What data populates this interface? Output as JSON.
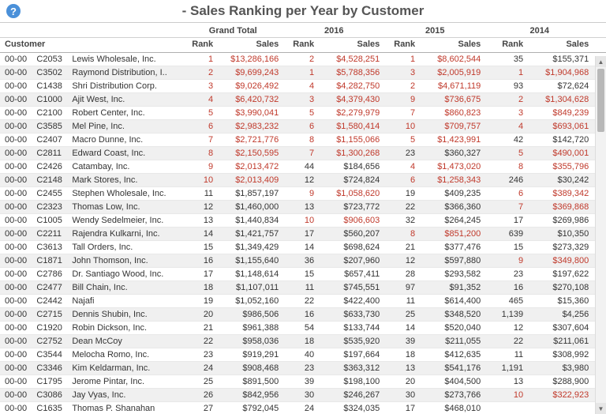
{
  "header": {
    "title": "- Sales Ranking per Year by Customer"
  },
  "columns": {
    "customer": "Customer",
    "groups": [
      {
        "label": "Grand Total",
        "rank": "Rank",
        "sales": "Sales"
      },
      {
        "label": "2016",
        "rank": "Rank",
        "sales": "Sales"
      },
      {
        "label": "2015",
        "rank": "Rank",
        "sales": "Sales"
      },
      {
        "label": "2014",
        "rank": "Rank",
        "sales": "Sales"
      }
    ]
  },
  "rows": [
    {
      "p": "00-00",
      "code": "C2053",
      "name": "Lewis Wholesale, Inc.",
      "gt_r": "1",
      "gt_rr": true,
      "gt_s": "$13,286,166",
      "gt_sr": true,
      "y16_r": "2",
      "y16_rr": true,
      "y16_s": "$4,528,251",
      "y16_sr": true,
      "y15_r": "1",
      "y15_rr": true,
      "y15_s": "$8,602,544",
      "y15_sr": true,
      "y14_r": "35",
      "y14_rr": false,
      "y14_s": "$155,371",
      "y14_sr": false
    },
    {
      "p": "00-00",
      "code": "C3502",
      "name": "Raymond Distribution, I..",
      "gt_r": "2",
      "gt_rr": true,
      "gt_s": "$9,699,243",
      "gt_sr": true,
      "y16_r": "1",
      "y16_rr": true,
      "y16_s": "$5,788,356",
      "y16_sr": true,
      "y15_r": "3",
      "y15_rr": true,
      "y15_s": "$2,005,919",
      "y15_sr": true,
      "y14_r": "1",
      "y14_rr": true,
      "y14_s": "$1,904,968",
      "y14_sr": true
    },
    {
      "p": "00-00",
      "code": "C1438",
      "name": "Shri Distribution Corp.",
      "gt_r": "3",
      "gt_rr": true,
      "gt_s": "$9,026,492",
      "gt_sr": true,
      "y16_r": "4",
      "y16_rr": true,
      "y16_s": "$4,282,750",
      "y16_sr": true,
      "y15_r": "2",
      "y15_rr": true,
      "y15_s": "$4,671,119",
      "y15_sr": true,
      "y14_r": "93",
      "y14_rr": false,
      "y14_s": "$72,624",
      "y14_sr": false
    },
    {
      "p": "00-00",
      "code": "C1000",
      "name": "Ajit West, Inc.",
      "gt_r": "4",
      "gt_rr": true,
      "gt_s": "$6,420,732",
      "gt_sr": true,
      "y16_r": "3",
      "y16_rr": true,
      "y16_s": "$4,379,430",
      "y16_sr": true,
      "y15_r": "9",
      "y15_rr": true,
      "y15_s": "$736,675",
      "y15_sr": true,
      "y14_r": "2",
      "y14_rr": true,
      "y14_s": "$1,304,628",
      "y14_sr": true
    },
    {
      "p": "00-00",
      "code": "C2100",
      "name": "Robert Center, Inc.",
      "gt_r": "5",
      "gt_rr": true,
      "gt_s": "$3,990,041",
      "gt_sr": true,
      "y16_r": "5",
      "y16_rr": true,
      "y16_s": "$2,279,979",
      "y16_sr": true,
      "y15_r": "7",
      "y15_rr": true,
      "y15_s": "$860,823",
      "y15_sr": true,
      "y14_r": "3",
      "y14_rr": true,
      "y14_s": "$849,239",
      "y14_sr": true
    },
    {
      "p": "00-00",
      "code": "C3585",
      "name": "Mel Pine, Inc.",
      "gt_r": "6",
      "gt_rr": true,
      "gt_s": "$2,983,232",
      "gt_sr": true,
      "y16_r": "6",
      "y16_rr": true,
      "y16_s": "$1,580,414",
      "y16_sr": true,
      "y15_r": "10",
      "y15_rr": true,
      "y15_s": "$709,757",
      "y15_sr": true,
      "y14_r": "4",
      "y14_rr": true,
      "y14_s": "$693,061",
      "y14_sr": true
    },
    {
      "p": "00-00",
      "code": "C2407",
      "name": "Macro Dunne, Inc.",
      "gt_r": "7",
      "gt_rr": true,
      "gt_s": "$2,721,776",
      "gt_sr": true,
      "y16_r": "8",
      "y16_rr": true,
      "y16_s": "$1,155,066",
      "y16_sr": true,
      "y15_r": "5",
      "y15_rr": true,
      "y15_s": "$1,423,991",
      "y15_sr": true,
      "y14_r": "42",
      "y14_rr": false,
      "y14_s": "$142,720",
      "y14_sr": false
    },
    {
      "p": "00-00",
      "code": "C2811",
      "name": "Edward Coast, Inc.",
      "gt_r": "8",
      "gt_rr": true,
      "gt_s": "$2,150,595",
      "gt_sr": true,
      "y16_r": "7",
      "y16_rr": true,
      "y16_s": "$1,300,268",
      "y16_sr": true,
      "y15_r": "23",
      "y15_rr": false,
      "y15_s": "$360,327",
      "y15_sr": false,
      "y14_r": "5",
      "y14_rr": true,
      "y14_s": "$490,001",
      "y14_sr": true
    },
    {
      "p": "00-00",
      "code": "C2426",
      "name": "Catambay, Inc.",
      "gt_r": "9",
      "gt_rr": true,
      "gt_s": "$2,013,472",
      "gt_sr": true,
      "y16_r": "44",
      "y16_rr": false,
      "y16_s": "$184,656",
      "y16_sr": false,
      "y15_r": "4",
      "y15_rr": true,
      "y15_s": "$1,473,020",
      "y15_sr": true,
      "y14_r": "8",
      "y14_rr": true,
      "y14_s": "$355,796",
      "y14_sr": true
    },
    {
      "p": "00-00",
      "code": "C2148",
      "name": "Mark Stores, Inc.",
      "gt_r": "10",
      "gt_rr": true,
      "gt_s": "$2,013,409",
      "gt_sr": true,
      "y16_r": "12",
      "y16_rr": false,
      "y16_s": "$724,824",
      "y16_sr": false,
      "y15_r": "6",
      "y15_rr": true,
      "y15_s": "$1,258,343",
      "y15_sr": true,
      "y14_r": "246",
      "y14_rr": false,
      "y14_s": "$30,242",
      "y14_sr": false
    },
    {
      "p": "00-00",
      "code": "C2455",
      "name": "Stephen Wholesale, Inc.",
      "gt_r": "11",
      "gt_rr": false,
      "gt_s": "$1,857,197",
      "gt_sr": false,
      "y16_r": "9",
      "y16_rr": true,
      "y16_s": "$1,058,620",
      "y16_sr": true,
      "y15_r": "19",
      "y15_rr": false,
      "y15_s": "$409,235",
      "y15_sr": false,
      "y14_r": "6",
      "y14_rr": true,
      "y14_s": "$389,342",
      "y14_sr": true
    },
    {
      "p": "00-00",
      "code": "C2323",
      "name": "Thomas Low, Inc.",
      "gt_r": "12",
      "gt_rr": false,
      "gt_s": "$1,460,000",
      "gt_sr": false,
      "y16_r": "13",
      "y16_rr": false,
      "y16_s": "$723,772",
      "y16_sr": false,
      "y15_r": "22",
      "y15_rr": false,
      "y15_s": "$366,360",
      "y15_sr": false,
      "y14_r": "7",
      "y14_rr": true,
      "y14_s": "$369,868",
      "y14_sr": true
    },
    {
      "p": "00-00",
      "code": "C1005",
      "name": "Wendy Sedelmeier, Inc.",
      "gt_r": "13",
      "gt_rr": false,
      "gt_s": "$1,440,834",
      "gt_sr": false,
      "y16_r": "10",
      "y16_rr": true,
      "y16_s": "$906,603",
      "y16_sr": true,
      "y15_r": "32",
      "y15_rr": false,
      "y15_s": "$264,245",
      "y15_sr": false,
      "y14_r": "17",
      "y14_rr": false,
      "y14_s": "$269,986",
      "y14_sr": false
    },
    {
      "p": "00-00",
      "code": "C2211",
      "name": "Rajendra Kulkarni, Inc.",
      "gt_r": "14",
      "gt_rr": false,
      "gt_s": "$1,421,757",
      "gt_sr": false,
      "y16_r": "17",
      "y16_rr": false,
      "y16_s": "$560,207",
      "y16_sr": false,
      "y15_r": "8",
      "y15_rr": true,
      "y15_s": "$851,200",
      "y15_sr": true,
      "y14_r": "639",
      "y14_rr": false,
      "y14_s": "$10,350",
      "y14_sr": false
    },
    {
      "p": "00-00",
      "code": "C3613",
      "name": "Tall Orders, Inc.",
      "gt_r": "15",
      "gt_rr": false,
      "gt_s": "$1,349,429",
      "gt_sr": false,
      "y16_r": "14",
      "y16_rr": false,
      "y16_s": "$698,624",
      "y16_sr": false,
      "y15_r": "21",
      "y15_rr": false,
      "y15_s": "$377,476",
      "y15_sr": false,
      "y14_r": "15",
      "y14_rr": false,
      "y14_s": "$273,329",
      "y14_sr": false
    },
    {
      "p": "00-00",
      "code": "C1871",
      "name": "John Thomson, Inc.",
      "gt_r": "16",
      "gt_rr": false,
      "gt_s": "$1,155,640",
      "gt_sr": false,
      "y16_r": "36",
      "y16_rr": false,
      "y16_s": "$207,960",
      "y16_sr": false,
      "y15_r": "12",
      "y15_rr": false,
      "y15_s": "$597,880",
      "y15_sr": false,
      "y14_r": "9",
      "y14_rr": true,
      "y14_s": "$349,800",
      "y14_sr": true
    },
    {
      "p": "00-00",
      "code": "C2786",
      "name": "Dr. Santiago Wood, Inc.",
      "gt_r": "17",
      "gt_rr": false,
      "gt_s": "$1,148,614",
      "gt_sr": false,
      "y16_r": "15",
      "y16_rr": false,
      "y16_s": "$657,411",
      "y16_sr": false,
      "y15_r": "28",
      "y15_rr": false,
      "y15_s": "$293,582",
      "y15_sr": false,
      "y14_r": "23",
      "y14_rr": false,
      "y14_s": "$197,622",
      "y14_sr": false
    },
    {
      "p": "00-00",
      "code": "C2477",
      "name": "Bill Chain, Inc.",
      "gt_r": "18",
      "gt_rr": false,
      "gt_s": "$1,107,011",
      "gt_sr": false,
      "y16_r": "11",
      "y16_rr": false,
      "y16_s": "$745,551",
      "y16_sr": false,
      "y15_r": "97",
      "y15_rr": false,
      "y15_s": "$91,352",
      "y15_sr": false,
      "y14_r": "16",
      "y14_rr": false,
      "y14_s": "$270,108",
      "y14_sr": false
    },
    {
      "p": "00-00",
      "code": "C2442",
      "name": "Najafi",
      "gt_r": "19",
      "gt_rr": false,
      "gt_s": "$1,052,160",
      "gt_sr": false,
      "y16_r": "22",
      "y16_rr": false,
      "y16_s": "$422,400",
      "y16_sr": false,
      "y15_r": "11",
      "y15_rr": false,
      "y15_s": "$614,400",
      "y15_sr": false,
      "y14_r": "465",
      "y14_rr": false,
      "y14_s": "$15,360",
      "y14_sr": false
    },
    {
      "p": "00-00",
      "code": "C2715",
      "name": "Dennis Shubin, Inc.",
      "gt_r": "20",
      "gt_rr": false,
      "gt_s": "$986,506",
      "gt_sr": false,
      "y16_r": "16",
      "y16_rr": false,
      "y16_s": "$633,730",
      "y16_sr": false,
      "y15_r": "25",
      "y15_rr": false,
      "y15_s": "$348,520",
      "y15_sr": false,
      "y14_r": "1,139",
      "y14_rr": false,
      "y14_s": "$4,256",
      "y14_sr": false
    },
    {
      "p": "00-00",
      "code": "C1920",
      "name": "Robin Dickson, Inc.",
      "gt_r": "21",
      "gt_rr": false,
      "gt_s": "$961,388",
      "gt_sr": false,
      "y16_r": "54",
      "y16_rr": false,
      "y16_s": "$133,744",
      "y16_sr": false,
      "y15_r": "14",
      "y15_rr": false,
      "y15_s": "$520,040",
      "y15_sr": false,
      "y14_r": "12",
      "y14_rr": false,
      "y14_s": "$307,604",
      "y14_sr": false
    },
    {
      "p": "00-00",
      "code": "C2752",
      "name": "Dean McCoy",
      "gt_r": "22",
      "gt_rr": false,
      "gt_s": "$958,036",
      "gt_sr": false,
      "y16_r": "18",
      "y16_rr": false,
      "y16_s": "$535,920",
      "y16_sr": false,
      "y15_r": "39",
      "y15_rr": false,
      "y15_s": "$211,055",
      "y15_sr": false,
      "y14_r": "22",
      "y14_rr": false,
      "y14_s": "$211,061",
      "y14_sr": false
    },
    {
      "p": "00-00",
      "code": "C3544",
      "name": "Melocha Romo, Inc.",
      "gt_r": "23",
      "gt_rr": false,
      "gt_s": "$919,291",
      "gt_sr": false,
      "y16_r": "40",
      "y16_rr": false,
      "y16_s": "$197,664",
      "y16_sr": false,
      "y15_r": "18",
      "y15_rr": false,
      "y15_s": "$412,635",
      "y15_sr": false,
      "y14_r": "11",
      "y14_rr": false,
      "y14_s": "$308,992",
      "y14_sr": false
    },
    {
      "p": "00-00",
      "code": "C3346",
      "name": "Kim Keldarman, Inc.",
      "gt_r": "24",
      "gt_rr": false,
      "gt_s": "$908,468",
      "gt_sr": false,
      "y16_r": "23",
      "y16_rr": false,
      "y16_s": "$363,312",
      "y16_sr": false,
      "y15_r": "13",
      "y15_rr": false,
      "y15_s": "$541,176",
      "y15_sr": false,
      "y14_r": "1,191",
      "y14_rr": false,
      "y14_s": "$3,980",
      "y14_sr": false
    },
    {
      "p": "00-00",
      "code": "C1795",
      "name": "Jerome Pintar, Inc.",
      "gt_r": "25",
      "gt_rr": false,
      "gt_s": "$891,500",
      "gt_sr": false,
      "y16_r": "39",
      "y16_rr": false,
      "y16_s": "$198,100",
      "y16_sr": false,
      "y15_r": "20",
      "y15_rr": false,
      "y15_s": "$404,500",
      "y15_sr": false,
      "y14_r": "13",
      "y14_rr": false,
      "y14_s": "$288,900",
      "y14_sr": false
    },
    {
      "p": "00-00",
      "code": "C3086",
      "name": "Jay Vyas, Inc.",
      "gt_r": "26",
      "gt_rr": false,
      "gt_s": "$842,956",
      "gt_sr": false,
      "y16_r": "30",
      "y16_rr": false,
      "y16_s": "$246,267",
      "y16_sr": false,
      "y15_r": "30",
      "y15_rr": false,
      "y15_s": "$273,766",
      "y15_sr": false,
      "y14_r": "10",
      "y14_rr": true,
      "y14_s": "$322,923",
      "y14_sr": true
    },
    {
      "p": "00-00",
      "code": "C1635",
      "name": "Thomas P. Shanahan",
      "gt_r": "27",
      "gt_rr": false,
      "gt_s": "$792,045",
      "gt_sr": false,
      "y16_r": "24",
      "y16_rr": false,
      "y16_s": "$324,035",
      "y16_sr": false,
      "y15_r": "17",
      "y15_rr": false,
      "y15_s": "$468,010",
      "y15_sr": false,
      "y14_r": "",
      "y14_rr": false,
      "y14_s": "",
      "y14_sr": false
    }
  ],
  "style": {
    "red_color": "#c0392b",
    "text_color": "#333333",
    "even_row_bg": "#f0f0f0",
    "odd_row_bg": "#ffffff"
  }
}
